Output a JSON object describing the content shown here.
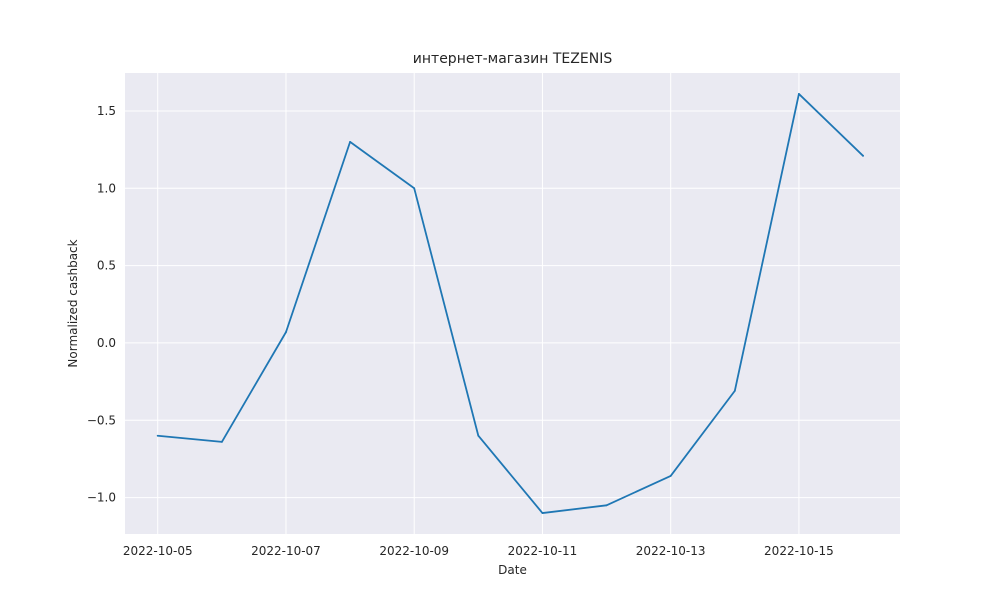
{
  "chart_data": {
    "type": "line",
    "title": "интернет-магазин TEZENIS",
    "xlabel": "Date",
    "ylabel": "Normalized cashback",
    "x": [
      "2022-10-05",
      "2022-10-06",
      "2022-10-07",
      "2022-10-08",
      "2022-10-09",
      "2022-10-10",
      "2022-10-11",
      "2022-10-12",
      "2022-10-13",
      "2022-10-14",
      "2022-10-15",
      "2022-10-16"
    ],
    "series": [
      {
        "values": [
          -0.6,
          -0.64,
          0.07,
          1.3,
          1.0,
          -0.6,
          -1.1,
          -1.05,
          -0.86,
          -0.31,
          1.61,
          1.21
        ]
      }
    ],
    "x_tick_labels": [
      "2022-10-05",
      "2022-10-07",
      "2022-10-09",
      "2022-10-11",
      "2022-10-13",
      "2022-10-15"
    ],
    "y_ticks": [
      -1.0,
      -0.5,
      0.0,
      0.5,
      1.0,
      1.5
    ],
    "y_tick_labels": [
      "−1.0",
      "−0.5",
      "0.0",
      "0.5",
      "1.0",
      "1.5"
    ],
    "xlim": [
      "2022-10-04T11:45",
      "2022-10-16T13:50"
    ],
    "ylim": [
      -1.2355,
      1.7455
    ],
    "grid": true,
    "colors": {
      "line": "#1f77b4",
      "background": "#eaeaf2",
      "grid": "#ffffff"
    }
  }
}
